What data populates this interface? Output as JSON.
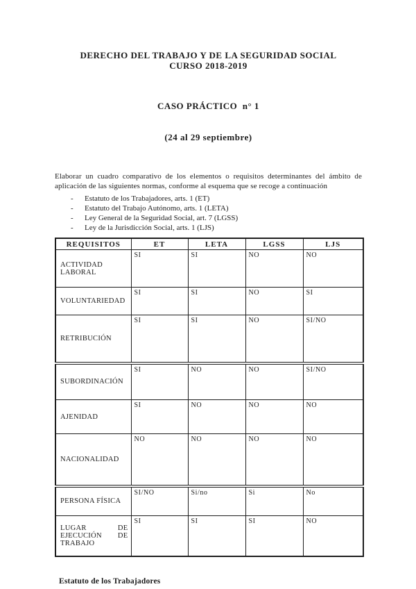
{
  "header": {
    "title_line1": "DERECHO DEL TRABAJO Y DE LA SEGURIDAD SOCIAL",
    "title_line2": "CURSO 2018-2019",
    "case_title": "CASO PRÁCTICO  n° 1",
    "case_dates": "(24 al 29 septiembre)"
  },
  "intro": {
    "paragraph": "Elaborar un cuadro comparativo de los elementos o requisitos determinantes del ámbito de aplicación de las siguientes normas, conforme al esquema que se recoge a continuación",
    "bullet": "-",
    "items": [
      "Estatuto de los Trabajadores, arts. 1 (ET)",
      "Estatuto del Trabajo Autónomo, arts. 1 (LETA)",
      "Ley General de la Seguridad Social, art. 7 (LGSS)",
      "Ley de la Jurisdicción Social, arts. 1 (LJS)"
    ]
  },
  "table": {
    "headers": [
      "REQUISITOS",
      "ET",
      "LETA",
      "LGSS",
      "LJS"
    ],
    "rows": [
      {
        "label": "ACTIVIDAD LABORAL",
        "values": [
          "SI",
          "SI",
          "NO",
          "NO"
        ]
      },
      {
        "label": "VOLUNTARIEDAD",
        "values": [
          "SI",
          "SI",
          "NO",
          "SI"
        ]
      },
      {
        "label": "RETRIBUCIÓN",
        "values": [
          "SI",
          "SI",
          "NO",
          "SI/NO"
        ]
      },
      {
        "label": "SUBORDINACIÓN",
        "values": [
          "SI",
          "NO",
          "NO",
          "SI/NO"
        ]
      },
      {
        "label": "AJENIDAD",
        "values": [
          "SI",
          "NO",
          "NO",
          "NO"
        ]
      },
      {
        "label": "NACIONALIDAD",
        "values": [
          "NO",
          "NO",
          "NO",
          "NO"
        ]
      },
      {
        "label": "PERSONA FÍSICA",
        "values": [
          "SI/NO",
          "Si/no",
          "Si",
          "No"
        ]
      },
      {
        "label": "LUGAR DE EJECUCIÓN DE TRABAJO",
        "values": [
          "SI",
          "SI",
          "SI",
          "NO"
        ]
      }
    ]
  },
  "footer": {
    "text": "Estatuto de los Trabajadores"
  }
}
